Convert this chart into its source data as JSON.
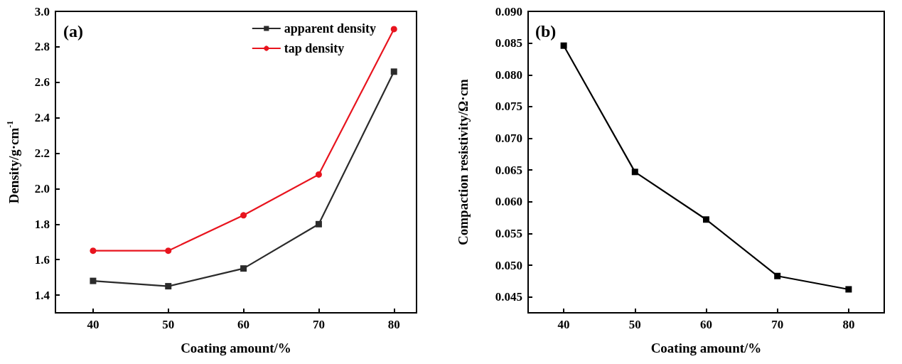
{
  "chart_data": [
    {
      "type": "line",
      "annotations": [
        "(a)"
      ],
      "xlabel": "Coating amount/%",
      "ylabel": "Density/g·cm$^{-1}$",
      "x": [
        40,
        50,
        60,
        70,
        80
      ],
      "xlim": [
        35,
        83
      ],
      "xticks": [
        40,
        50,
        60,
        70,
        80
      ],
      "ylim": [
        1.3,
        3.0
      ],
      "yticks": [
        1.4,
        1.6,
        1.8,
        {
          "value": 2,
          "label": "2.0"
        },
        2.2,
        2.4,
        2.6,
        2.8,
        {
          "value": 3,
          "label": "3.0"
        }
      ],
      "legend": "top right",
      "series": [
        {
          "name": "apparent density",
          "color": "#2b2b2b",
          "marker": "square",
          "values": [
            1.48,
            1.45,
            1.55,
            1.8,
            2.66
          ]
        },
        {
          "name": "tap density",
          "color": "#e8141e",
          "marker": "circle",
          "values": [
            1.65,
            1.65,
            1.85,
            2.08,
            2.9
          ]
        }
      ]
    },
    {
      "type": "line",
      "annotations": [
        "(b)"
      ],
      "xlabel": "Coating amount/%",
      "ylabel": "Compaction resistivity/Ω·cm",
      "x": [
        40,
        50,
        60,
        70,
        80
      ],
      "xlim": [
        35,
        85
      ],
      "xticks": [
        40,
        50,
        60,
        70,
        80
      ],
      "ylim": [
        0.0425,
        0.09
      ],
      "yticks": [
        0.045,
        {
          "value": 0.05,
          "label": "0.050"
        },
        0.055,
        {
          "value": 0.06,
          "label": "0.060"
        },
        0.065,
        {
          "value": 0.07,
          "label": "0.070"
        },
        0.075,
        {
          "value": 0.08,
          "label": "0.080"
        },
        0.085,
        {
          "value": 0.09,
          "label": "0.090"
        }
      ],
      "marker": "square",
      "series": [
        {
          "color": "#000000",
          "values": [
            0.0846,
            0.0647,
            0.0572,
            0.0483,
            0.0462
          ]
        }
      ]
    }
  ]
}
